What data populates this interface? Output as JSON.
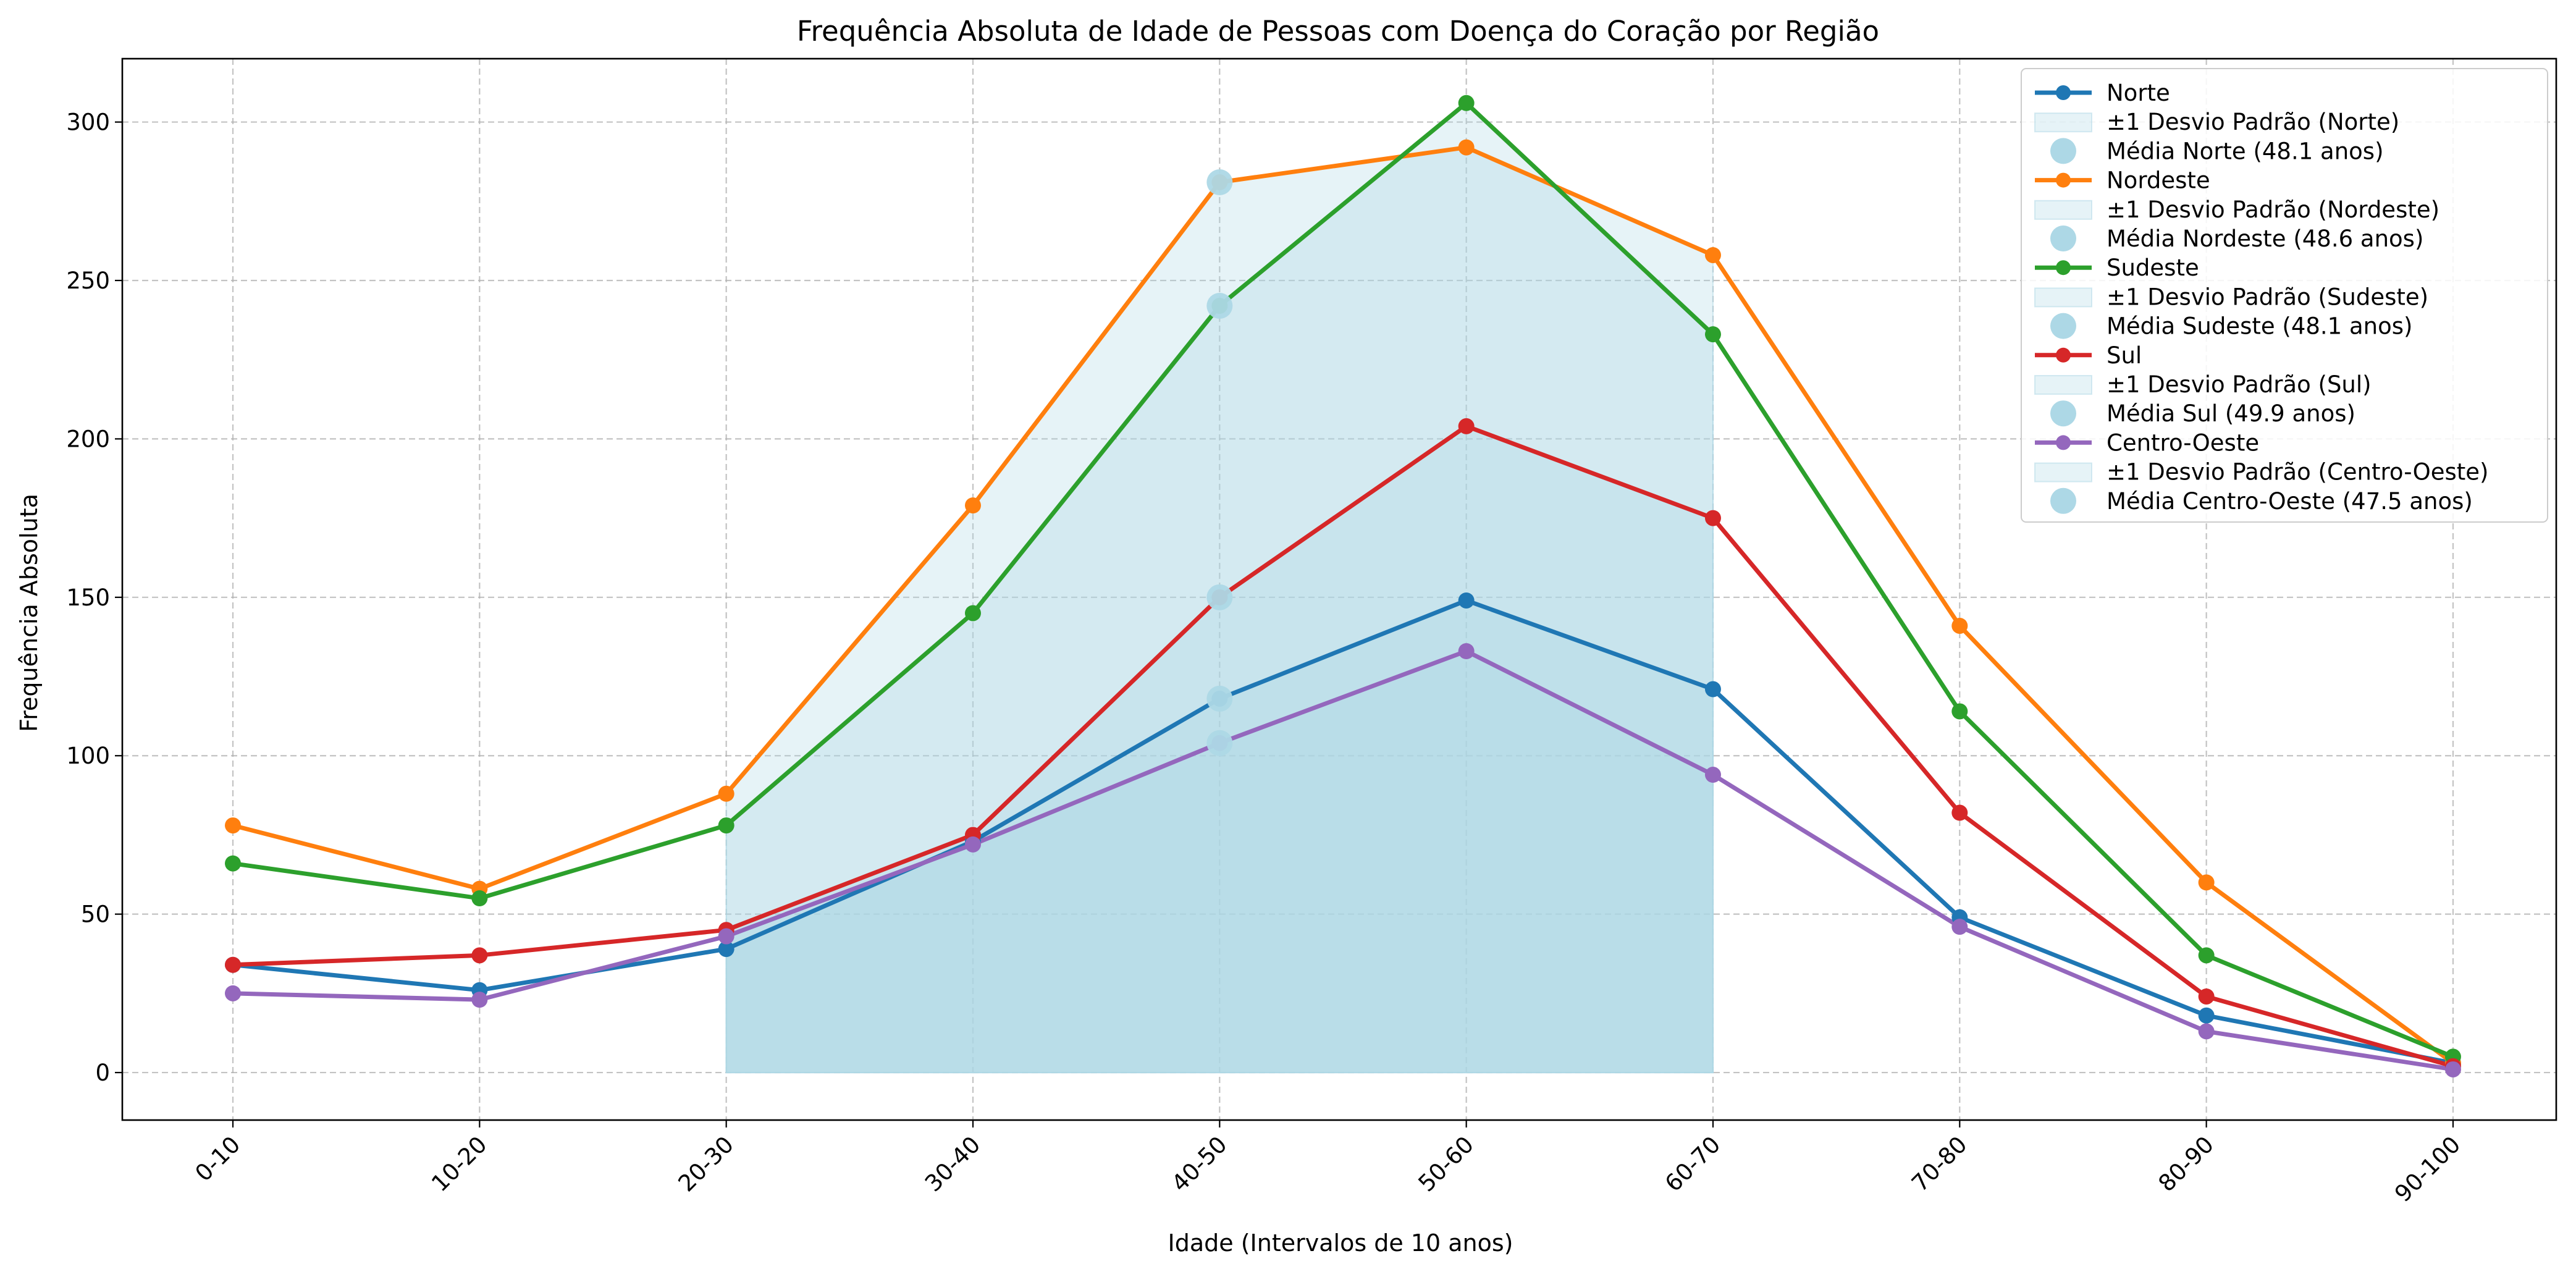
{
  "chart_data": {
    "type": "line",
    "title": "Frequência Absoluta de Idade de Pessoas com Doença do Coração por Região",
    "xlabel": "Idade (Intervalos de 10 anos)",
    "ylabel": "Frequência Absoluta",
    "categories": [
      "0-10",
      "10-20",
      "20-30",
      "30-40",
      "40-50",
      "50-60",
      "60-70",
      "70-80",
      "80-90",
      "90-100"
    ],
    "ylim": [
      -15,
      320
    ],
    "yticks": [
      0,
      50,
      100,
      150,
      200,
      250,
      300
    ],
    "grid": true,
    "legend_position": "top-right",
    "band_color": "#add8e6",
    "mean_marker_color": "#add8e6",
    "series": [
      {
        "name": "Norte",
        "color": "#1f77b4",
        "values": [
          34,
          26,
          39,
          73,
          118,
          149,
          121,
          49,
          18,
          3
        ],
        "std_band": {
          "label": "±1 Desvio Padrão (Norte)",
          "from_index": 2,
          "to_index": 6
        },
        "mean": {
          "label": "Média Norte (48.1 anos)",
          "index": 4,
          "value": 118
        }
      },
      {
        "name": "Nordeste",
        "color": "#ff7f0e",
        "values": [
          78,
          58,
          88,
          179,
          281,
          292,
          258,
          141,
          60,
          3
        ],
        "std_band": {
          "label": "±1 Desvio Padrão (Nordeste)",
          "from_index": 2,
          "to_index": 6
        },
        "mean": {
          "label": "Média Nordeste (48.6 anos)",
          "index": 4,
          "value": 281
        }
      },
      {
        "name": "Sudeste",
        "color": "#2ca02c",
        "values": [
          66,
          55,
          78,
          145,
          242,
          306,
          233,
          114,
          37,
          5
        ],
        "std_band": {
          "label": "±1 Desvio Padrão (Sudeste)",
          "from_index": 2,
          "to_index": 6
        },
        "mean": {
          "label": "Média Sudeste (48.1 anos)",
          "index": 4,
          "value": 242
        }
      },
      {
        "name": "Sul",
        "color": "#d62728",
        "values": [
          34,
          37,
          45,
          75,
          150,
          204,
          175,
          82,
          24,
          2
        ],
        "std_band": {
          "label": "±1 Desvio Padrão (Sul)",
          "from_index": 2,
          "to_index": 6
        },
        "mean": {
          "label": "Média Sul (49.9 anos)",
          "index": 4,
          "value": 150
        }
      },
      {
        "name": "Centro-Oeste",
        "color": "#9467bd",
        "values": [
          25,
          23,
          43,
          72,
          104,
          133,
          94,
          46,
          13,
          1
        ],
        "std_band": {
          "label": "±1 Desvio Padrão (Centro-Oeste)",
          "from_index": 2,
          "to_index": 6
        },
        "mean": {
          "label": "Média Centro-Oeste (47.5 anos)",
          "index": 4,
          "value": 104
        }
      }
    ]
  }
}
